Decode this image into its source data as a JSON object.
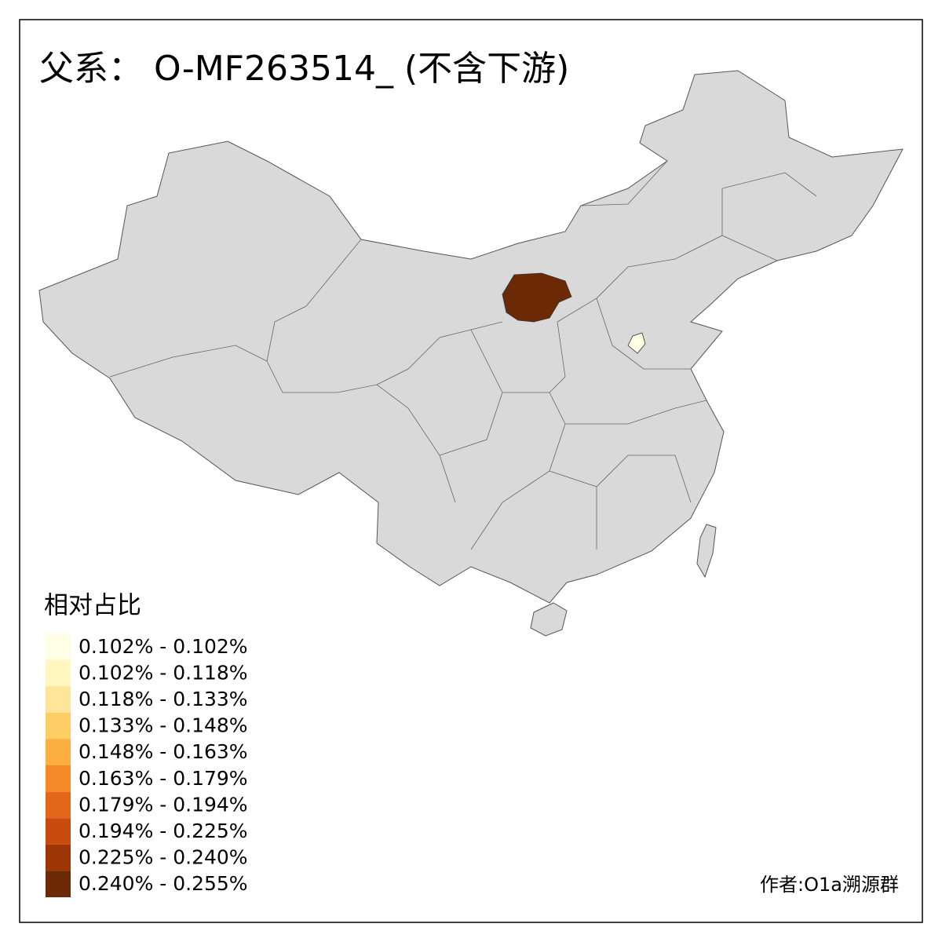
{
  "title": "父系： O-MF263514_ (不含下游)",
  "legend": {
    "title": "相对占比",
    "entries": [
      {
        "label": "0.102% - 0.102%",
        "color": "#FFFFE5"
      },
      {
        "label": "0.102% - 0.118%",
        "color": "#FFF6C0"
      },
      {
        "label": "0.118% - 0.133%",
        "color": "#FEE599"
      },
      {
        "label": "0.133% - 0.148%",
        "color": "#FECD66"
      },
      {
        "label": "0.148% - 0.163%",
        "color": "#FDAE40"
      },
      {
        "label": "0.163% - 0.179%",
        "color": "#F68A28"
      },
      {
        "label": "0.179% - 0.194%",
        "color": "#E4661A"
      },
      {
        "label": "0.194% - 0.225%",
        "color": "#C84A0C"
      },
      {
        "label": "0.225% - 0.240%",
        "color": "#9E3507"
      },
      {
        "label": "0.240% - 0.255%",
        "color": "#6B2906"
      }
    ]
  },
  "credit": "作者:O1a溯源群"
}
